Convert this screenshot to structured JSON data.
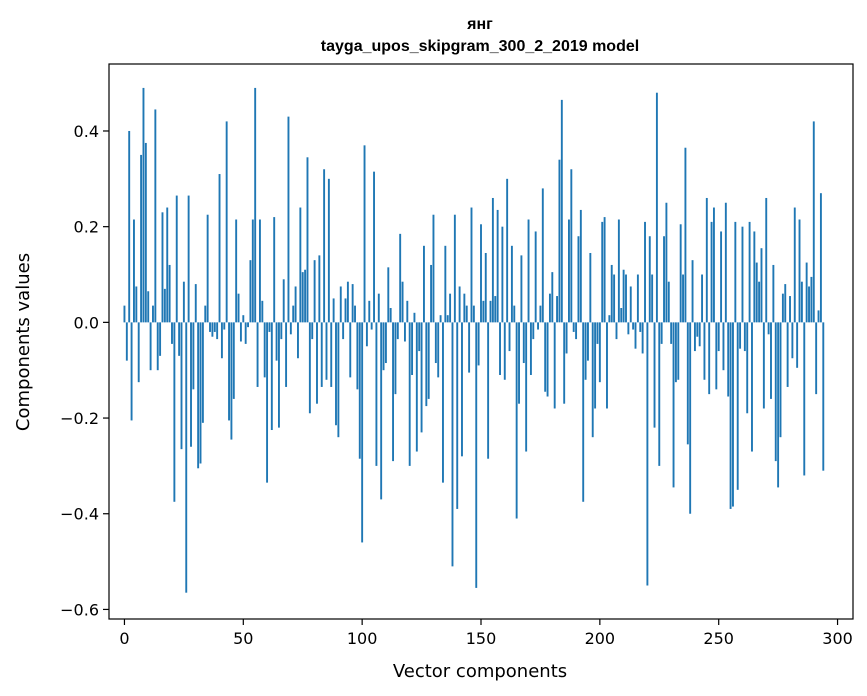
{
  "chart_data": {
    "type": "bar",
    "title": "янг",
    "subtitle": "tayga_upos_skipgram_300_2_2019 model",
    "xlabel": "Vector components",
    "ylabel": "Components values",
    "xlim": [
      -6.5,
      306.5
    ],
    "ylim": [
      -0.62,
      0.54
    ],
    "xticks": [
      0,
      50,
      100,
      150,
      200,
      250,
      300
    ],
    "xtick_labels": [
      "0",
      "50",
      "100",
      "150",
      "200",
      "250",
      "300"
    ],
    "yticks": [
      -0.6,
      -0.4,
      -0.2,
      0.0,
      0.2,
      0.4
    ],
    "ytick_labels": [
      "−0.6",
      "−0.4",
      "−0.2",
      "0.0",
      "0.2",
      "0.4"
    ],
    "bar_color": "#1f77b4",
    "values": [
      0.035,
      -0.08,
      0.4,
      -0.205,
      0.215,
      0.075,
      -0.125,
      0.35,
      0.49,
      0.375,
      0.065,
      -0.1,
      0.035,
      0.445,
      -0.1,
      -0.07,
      0.23,
      0.07,
      0.24,
      0.12,
      -0.045,
      -0.375,
      0.265,
      -0.07,
      -0.265,
      0.085,
      -0.565,
      0.265,
      -0.26,
      -0.14,
      0.08,
      -0.305,
      -0.295,
      -0.21,
      0.035,
      0.225,
      -0.02,
      -0.03,
      -0.02,
      -0.035,
      0.31,
      -0.075,
      -0.015,
      0.42,
      -0.205,
      -0.245,
      -0.16,
      0.215,
      0.06,
      -0.04,
      0.015,
      -0.045,
      -0.01,
      0.13,
      0.215,
      0.49,
      -0.135,
      0.215,
      0.045,
      -0.115,
      -0.335,
      -0.02,
      -0.225,
      0.22,
      -0.08,
      -0.22,
      -0.035,
      0.09,
      -0.135,
      0.43,
      -0.025,
      0.035,
      0.075,
      -0.075,
      0.24,
      0.105,
      0.11,
      0.345,
      -0.19,
      -0.035,
      0.13,
      -0.17,
      0.14,
      -0.135,
      0.32,
      -0.12,
      0.3,
      -0.135,
      0.05,
      -0.215,
      -0.24,
      0.075,
      -0.035,
      0.05,
      0.085,
      -0.115,
      0.08,
      0.035,
      -0.14,
      -0.285,
      -0.46,
      0.37,
      -0.05,
      0.045,
      -0.015,
      0.315,
      -0.3,
      0.06,
      -0.37,
      -0.1,
      -0.085,
      0.115,
      0.03,
      -0.29,
      -0.15,
      -0.035,
      0.185,
      0.085,
      -0.04,
      0.045,
      -0.3,
      -0.11,
      0.02,
      -0.27,
      -0.06,
      -0.23,
      0.16,
      -0.175,
      -0.16,
      0.12,
      0.225,
      -0.085,
      -0.115,
      0.015,
      -0.335,
      0.16,
      0.015,
      0.06,
      -0.51,
      0.225,
      -0.39,
      0.075,
      -0.28,
      0.06,
      0.035,
      -0.105,
      0.24,
      0.035,
      -0.555,
      -0.09,
      0.205,
      0.045,
      0.145,
      -0.285,
      0.045,
      0.26,
      0.055,
      0.235,
      -0.11,
      0.2,
      -0.12,
      0.3,
      -0.06,
      0.16,
      0.035,
      -0.41,
      -0.17,
      0.14,
      -0.085,
      -0.27,
      0.215,
      -0.11,
      -0.035,
      0.19,
      -0.015,
      0.035,
      0.28,
      -0.145,
      -0.155,
      0.06,
      0.105,
      -0.18,
      0.055,
      0.34,
      0.465,
      -0.17,
      -0.065,
      0.215,
      0.32,
      -0.02,
      -0.035,
      0.18,
      0.235,
      -0.375,
      -0.12,
      -0.08,
      0.145,
      -0.24,
      -0.18,
      -0.045,
      -0.125,
      0.21,
      0.22,
      -0.18,
      0.015,
      0.12,
      0.1,
      -0.035,
      0.215,
      0.03,
      0.11,
      0.1,
      -0.025,
      0.075,
      -0.015,
      -0.055,
      0.1,
      -0.02,
      -0.065,
      0.21,
      -0.55,
      0.18,
      0.1,
      -0.22,
      0.48,
      -0.3,
      -0.045,
      0.18,
      0.25,
      0.085,
      -0.045,
      -0.345,
      -0.125,
      -0.12,
      0.205,
      0.1,
      0.365,
      -0.255,
      -0.4,
      0.13,
      -0.06,
      -0.03,
      -0.05,
      0.1,
      -0.12,
      0.26,
      -0.15,
      0.21,
      0.24,
      -0.14,
      -0.06,
      0.19,
      -0.1,
      0.25,
      -0.155,
      -0.39,
      -0.385,
      0.21,
      -0.35,
      -0.055,
      0.2,
      -0.06,
      -0.19,
      0.21,
      -0.27,
      0.19,
      0.125,
      0.085,
      0.155,
      -0.18,
      0.26,
      -0.025,
      -0.16,
      0.12,
      -0.29,
      -0.345,
      -0.24,
      0.06,
      0.08,
      -0.135,
      0.055,
      -0.075,
      0.24,
      -0.095,
      0.215,
      0.085,
      -0.32,
      0.125,
      0.075,
      0.095,
      0.42,
      -0.15,
      0.025,
      0.27,
      -0.31
    ]
  }
}
